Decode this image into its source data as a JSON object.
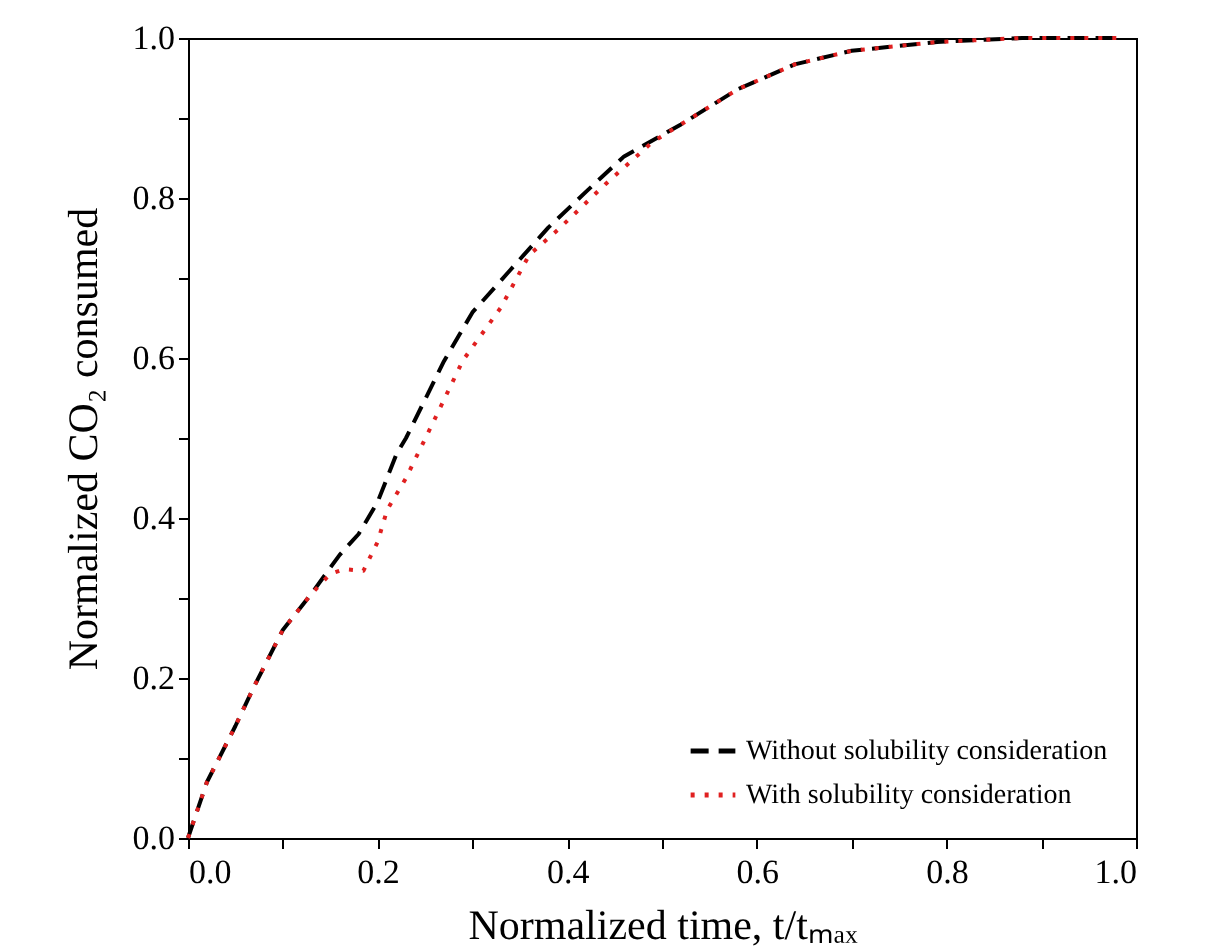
{
  "chart_data": {
    "type": "line",
    "xlabel": "Normalized time, t/tₘₐₓ",
    "ylabel": "Normalized CO₂ consumed",
    "xlim": [
      0,
      1
    ],
    "ylim": [
      0,
      1
    ],
    "xticks": [
      {
        "value": 0,
        "label": "0.0"
      },
      {
        "value": 0.1,
        "label": null
      },
      {
        "value": 0.2,
        "label": "0.2"
      },
      {
        "value": 0.3,
        "label": null
      },
      {
        "value": 0.4,
        "label": "0.4"
      },
      {
        "value": 0.5,
        "label": null
      },
      {
        "value": 0.6,
        "label": "0.6"
      },
      {
        "value": 0.7,
        "label": null
      },
      {
        "value": 0.8,
        "label": "0.8"
      },
      {
        "value": 0.9,
        "label": null
      },
      {
        "value": 1,
        "label": "1.0"
      }
    ],
    "yticks": [
      {
        "value": 0,
        "label": "0.0"
      },
      {
        "value": 0.1,
        "label": null
      },
      {
        "value": 0.2,
        "label": "0.2"
      },
      {
        "value": 0.3,
        "label": null
      },
      {
        "value": 0.4,
        "label": "0.4"
      },
      {
        "value": 0.5,
        "label": null
      },
      {
        "value": 0.6,
        "label": "0.6"
      },
      {
        "value": 0.7,
        "label": null
      },
      {
        "value": 0.8,
        "label": "0.8"
      },
      {
        "value": 0.9,
        "label": null
      },
      {
        "value": 1,
        "label": "1.0"
      }
    ],
    "legend": "bottom right",
    "grid": false,
    "series": [
      {
        "name": "Without solubility consideration",
        "color": "#000000",
        "line_style": "dashed",
        "x": [
          0,
          0.02,
          0.05,
          0.07,
          0.1,
          0.13,
          0.16,
          0.18,
          0.2,
          0.22,
          0.23,
          0.27,
          0.3,
          0.34,
          0.38,
          0.42,
          0.46,
          0.52,
          0.58,
          0.64,
          0.7,
          0.79,
          0.88,
          0.98
        ],
        "values": [
          0,
          0.07,
          0.14,
          0.19,
          0.26,
          0.305,
          0.354,
          0.38,
          0.42,
          0.48,
          0.5,
          0.596,
          0.657,
          0.71,
          0.763,
          0.808,
          0.852,
          0.892,
          0.936,
          0.967,
          0.984,
          0.995,
          1,
          1
        ]
      },
      {
        "name": "With solubility consideration",
        "color": "#e02020",
        "line_style": "dotted",
        "x": [
          0,
          0.02,
          0.05,
          0.07,
          0.1,
          0.13,
          0.15,
          0.165,
          0.185,
          0.2,
          0.21,
          0.23,
          0.26,
          0.29,
          0.33,
          0.36,
          0.39,
          0.44,
          0.49,
          0.52,
          0.58,
          0.64,
          0.7,
          0.79,
          0.88,
          0.98
        ],
        "values": [
          0,
          0.07,
          0.14,
          0.19,
          0.26,
          0.305,
          0.33,
          0.336,
          0.334,
          0.37,
          0.41,
          0.45,
          0.523,
          0.597,
          0.663,
          0.729,
          0.76,
          0.817,
          0.87,
          0.892,
          0.936,
          0.967,
          0.984,
          0.995,
          1,
          1
        ]
      }
    ]
  }
}
